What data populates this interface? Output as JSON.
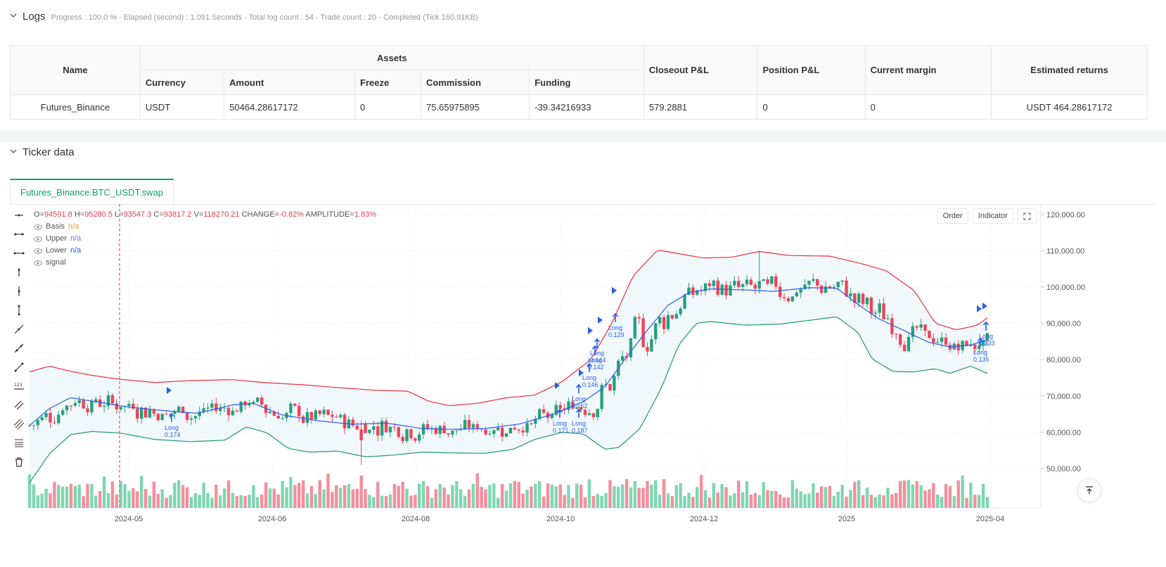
{
  "logs": {
    "title": "Logs",
    "meta": "Progress : 100.0 % - Elapsed (second) : 1.091  Seconds - Total log count : 54 - Trade count : 20 - Completed (Tick 160.91KB)"
  },
  "assets_table": {
    "headers": {
      "name": "Name",
      "assets": "Assets",
      "currency": "Currency",
      "amount": "Amount",
      "freeze": "Freeze",
      "commission": "Commission",
      "funding": "Funding",
      "closeout": "Closeout P&L",
      "position": "Position P&L",
      "margin": "Current margin",
      "returns": "Estimated returns"
    },
    "rows": [
      {
        "name": "Futures_Binance",
        "currency": "USDT",
        "amount": "50464.28617172",
        "freeze": "0",
        "commission": "75.65975895",
        "funding": "-39.34216933",
        "closeout": "579.2881",
        "position": "0",
        "margin": "0",
        "returns": "USDT 464.28617172"
      }
    ]
  },
  "ticker": {
    "title": "Ticker data",
    "tab": "Futures_Binance.BTC_USDT.swap",
    "buttons": {
      "order": "Order",
      "indicator": "Indicator"
    }
  },
  "legend": {
    "o_label": "O=",
    "o": "94591.8",
    "h_label": "H=",
    "h": "95280.5",
    "l_label": "L=",
    "l": "93547.3",
    "c_label": "C=",
    "c": "93817.2",
    "v_label": "V=",
    "v": "118270.21",
    "change_label": "CHANGE=",
    "change": "-0.82%",
    "amp_label": "AMPLITUDE=",
    "amp": "1.83%",
    "series": [
      {
        "name": "Basis",
        "value": "n/a",
        "color": "#f59e0b"
      },
      {
        "name": "Upper",
        "value": "n/a",
        "color": "#8b5cf6"
      },
      {
        "name": "Lower",
        "value": "n/a",
        "color": "#2563eb"
      },
      {
        "name": "signal",
        "value": "",
        "color": "#555555"
      }
    ]
  },
  "chart_data": {
    "type": "candlestick",
    "y_ticks": [
      "120,000.00",
      "110,000.00",
      "100,000.00",
      "90,000.00",
      "80,000.00",
      "70,000.00",
      "60,000.00",
      "50,000.00"
    ],
    "y_tick_values": [
      120000,
      110000,
      100000,
      90000,
      80000,
      70000,
      60000,
      50000
    ],
    "x_ticks": [
      "2024-05",
      "2024-06",
      "2024-08",
      "2024-10",
      "2024-12",
      "2025",
      "2025-04"
    ],
    "colors": {
      "up": "#26a17b",
      "down": "#ef4458",
      "upper": "#e8323c",
      "lower": "#1f9a6c",
      "basis": "#2b5de8",
      "fill": "#eef7fc",
      "signal": "#2b5de8"
    },
    "signals": [
      {
        "label": "Long",
        "qty": "0.174"
      },
      {
        "label": "Long",
        "qty": "0.171"
      },
      {
        "label": "Long",
        "qty": "0.187"
      },
      {
        "label": "Long",
        "qty": "0.162"
      },
      {
        "label": "Long",
        "qty": "0.146"
      },
      {
        "label": "Long",
        "qty": "0.142"
      },
      {
        "label": "Long",
        "qty": "0.144"
      },
      {
        "label": "Long",
        "qty": "0.129"
      },
      {
        "label": "Long",
        "qty": "0.135"
      },
      {
        "label": "Long",
        "qty": "0.133"
      }
    ]
  }
}
